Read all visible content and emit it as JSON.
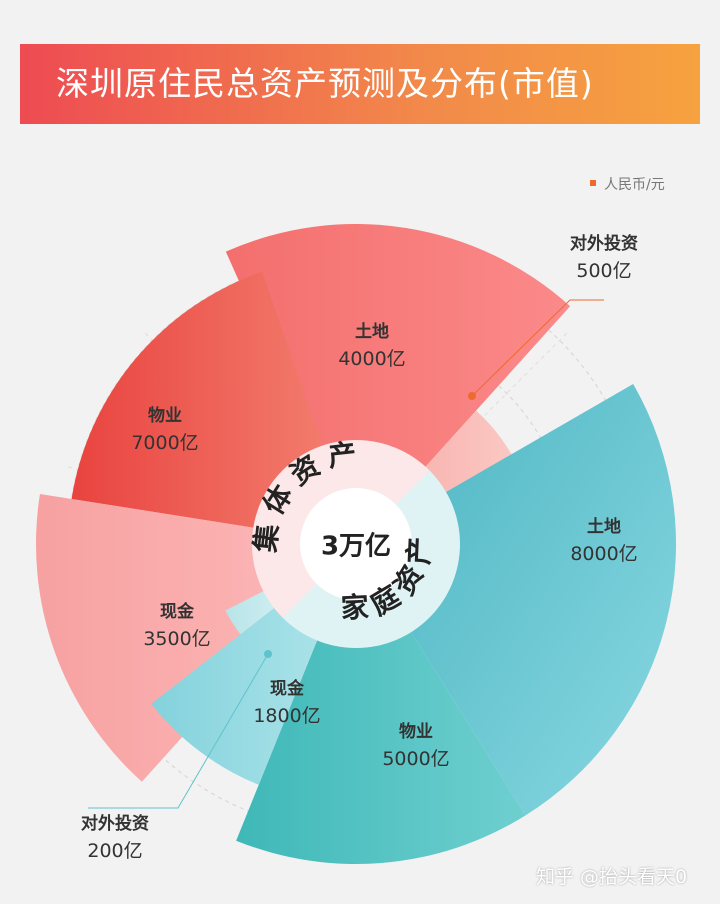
{
  "title": "深圳原住民总资产预测及分布(市值)",
  "unit_label": "人民币/元",
  "center_label": "3万亿",
  "ring_labels": {
    "collective": "集体资产",
    "family": "家庭资产"
  },
  "watermark": "知乎 @抬头看天0",
  "colors": {
    "collective": "#ef5a57",
    "family": "#4fbfc7",
    "accent": "#ee6a2e"
  },
  "chart_data": {
    "type": "pie",
    "total": "3万亿",
    "groups": [
      {
        "name": "集体资产",
        "segments": [
          {
            "name": "土地",
            "value": 4000,
            "label": "4000亿"
          },
          {
            "name": "物业",
            "value": 7000,
            "label": "7000亿"
          },
          {
            "name": "现金",
            "value": 3500,
            "label": "3500亿"
          },
          {
            "name": "对外投资",
            "value": 500,
            "label": "500亿"
          }
        ]
      },
      {
        "name": "家庭资产",
        "segments": [
          {
            "name": "土地",
            "value": 8000,
            "label": "8000亿"
          },
          {
            "name": "物业",
            "value": 5000,
            "label": "5000亿"
          },
          {
            "name": "现金",
            "value": 1800,
            "label": "1800亿"
          },
          {
            "name": "对外投资",
            "value": 200,
            "label": "200亿"
          }
        ]
      }
    ]
  }
}
